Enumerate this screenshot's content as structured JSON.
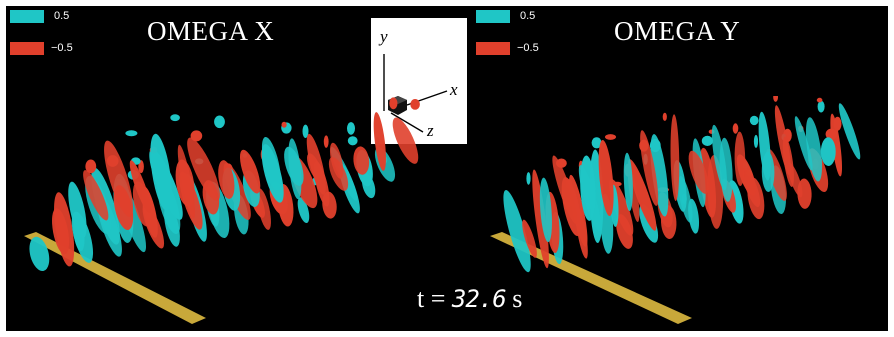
{
  "left_panel": {
    "title": "OMEGA X",
    "legend": [
      {
        "label": "0.5",
        "color": "#1fc6c6"
      },
      {
        "label": "−0.5",
        "color": "#e0402c"
      }
    ]
  },
  "right_panel": {
    "title": "OMEGA Y",
    "legend": [
      {
        "label": "0.5",
        "color": "#1fc6c6"
      },
      {
        "label": "−0.5",
        "color": "#e0402c"
      }
    ]
  },
  "axes_gizmo": {
    "x_label": "x",
    "y_label": "y",
    "z_label": "z"
  },
  "time": {
    "prefix": "t = ",
    "value": "32.6",
    "unit": " s"
  },
  "colors": {
    "positive": "#1fc6c6",
    "negative": "#e0402c",
    "plate": "#c8a83a",
    "background": "#000000"
  }
}
